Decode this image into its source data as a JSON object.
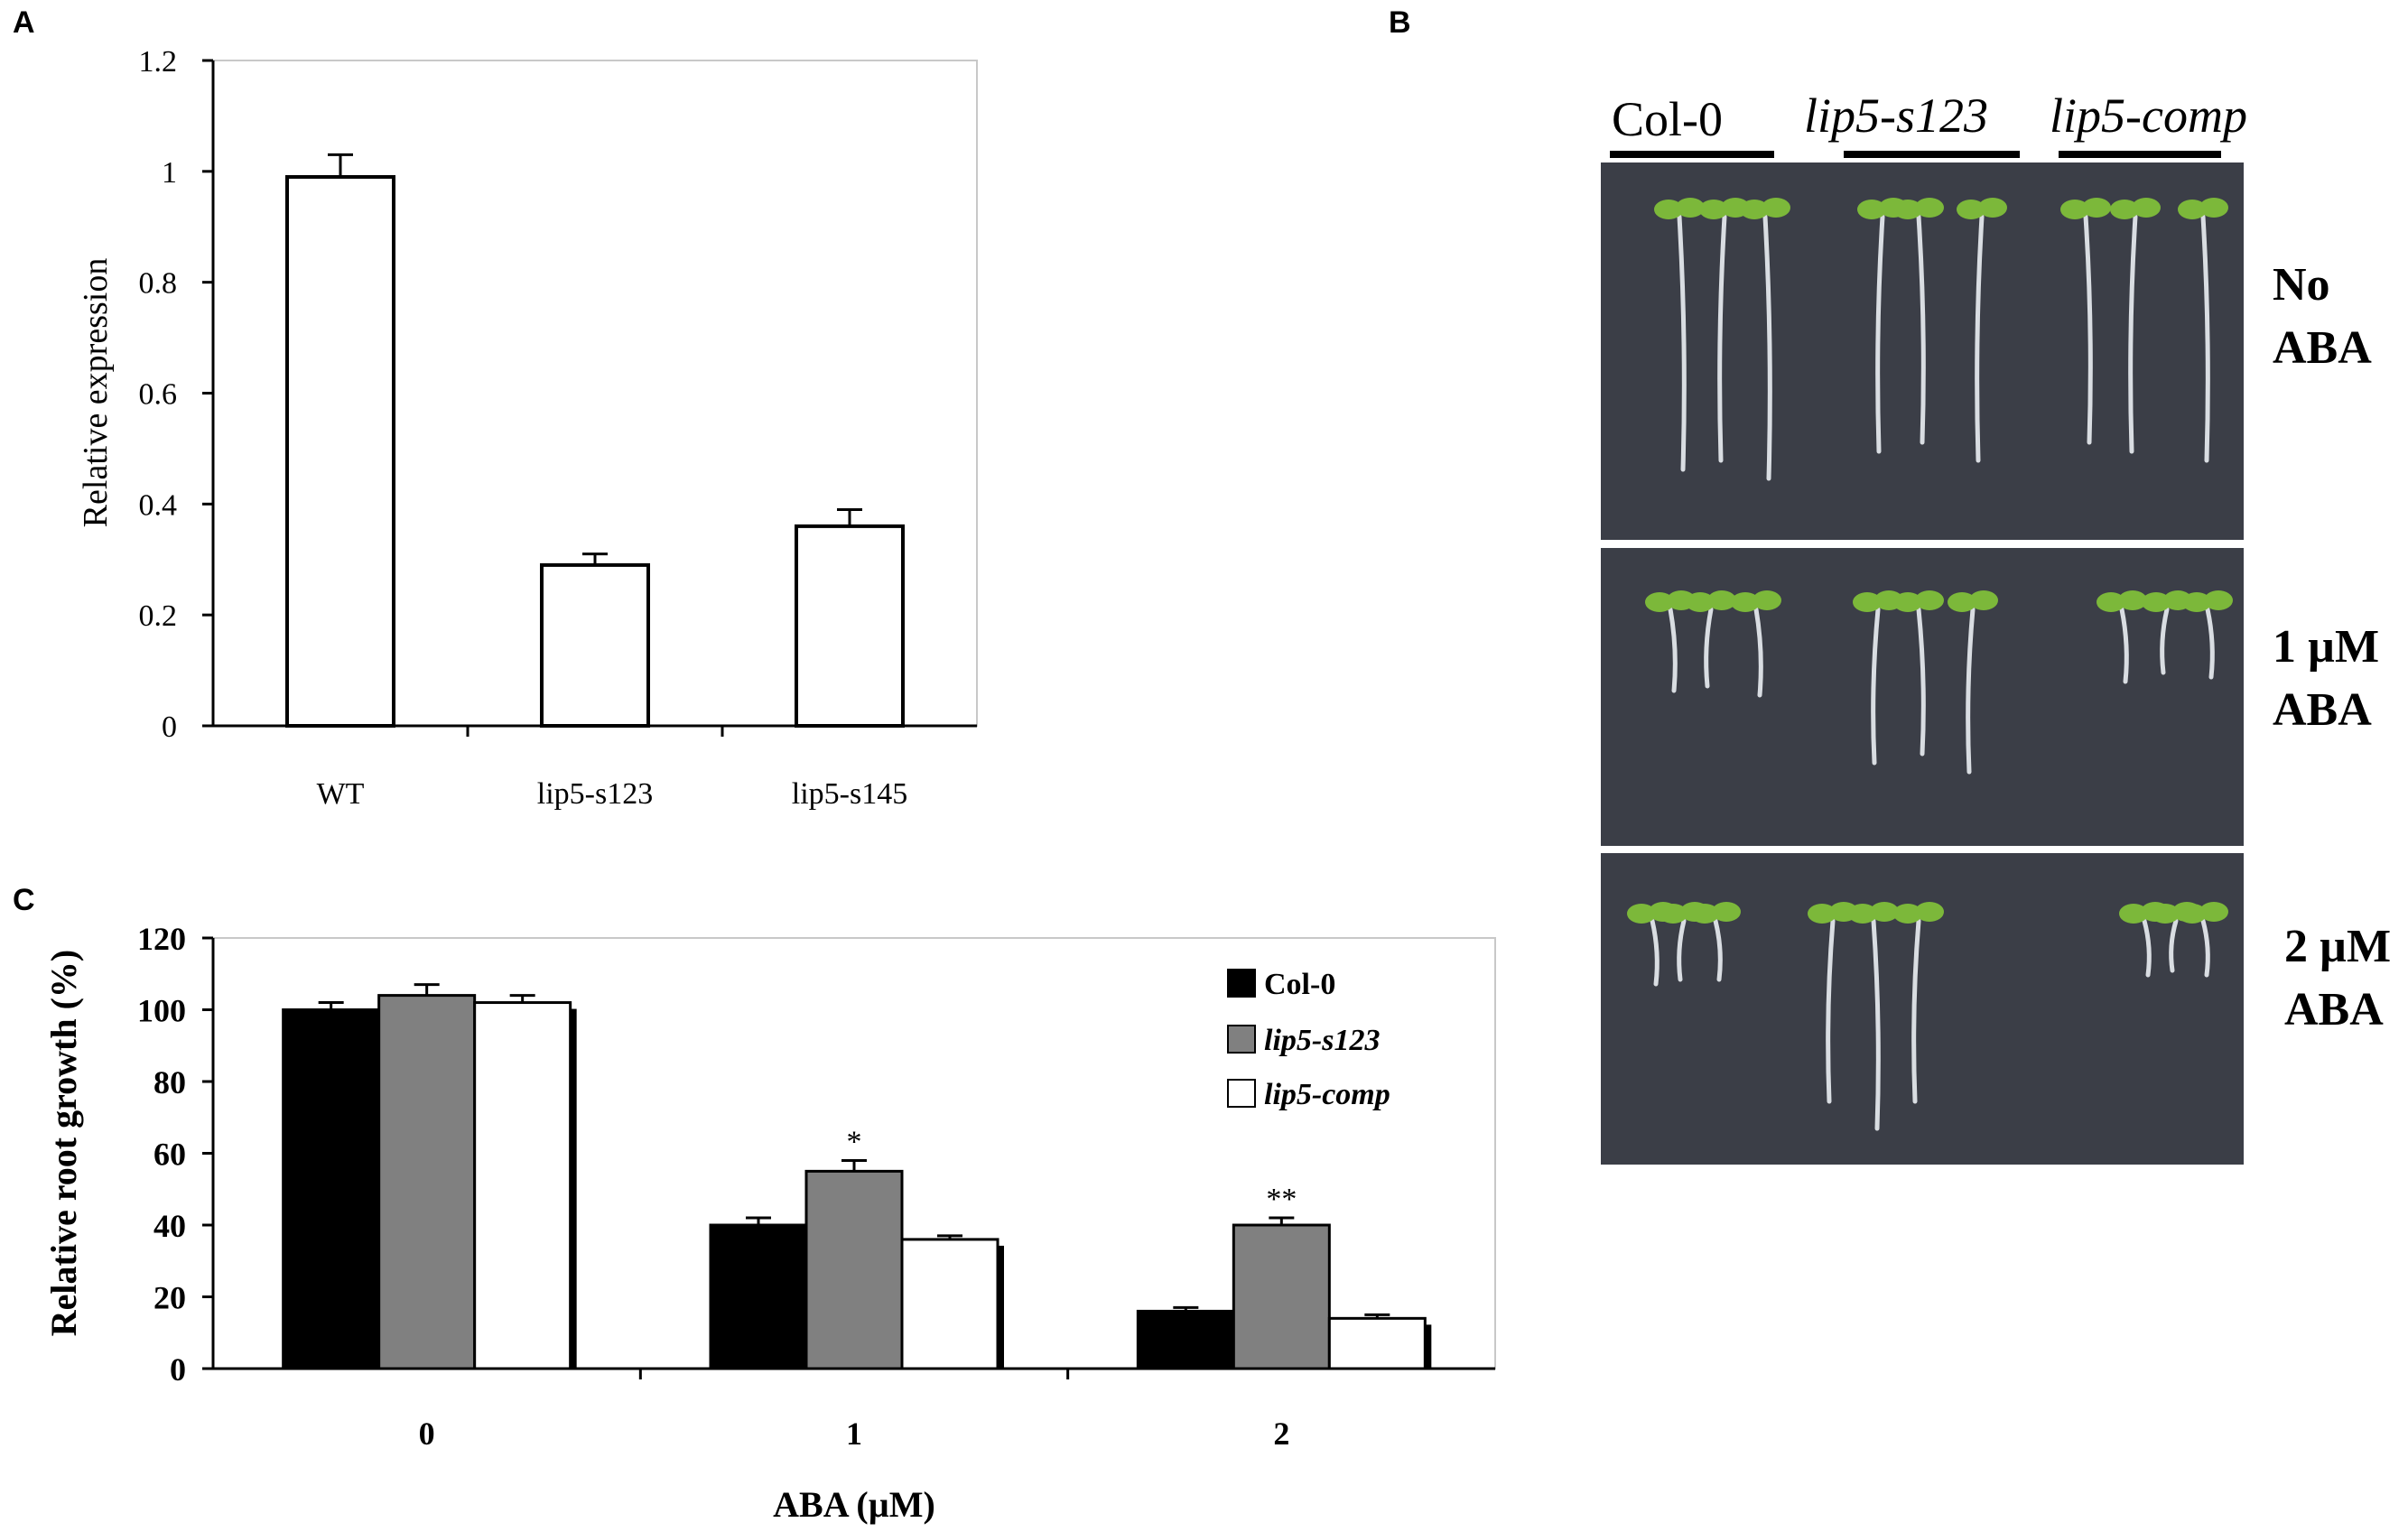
{
  "panel_labels": {
    "a": "A",
    "b": "B",
    "c": "C"
  },
  "chart_data": [
    {
      "panel": "A",
      "type": "bar",
      "categories": [
        "WT",
        "lip5-s123",
        "lip5-s145"
      ],
      "values": [
        0.99,
        0.29,
        0.36
      ],
      "errors": [
        0.04,
        0.02,
        0.03
      ],
      "title": "",
      "xlabel": "",
      "ylabel": "Relative expression",
      "ylim": [
        0,
        1.2
      ],
      "yticks": [
        "0",
        "0.2",
        "0.4",
        "0.6",
        "0.8",
        "1",
        "1.2"
      ],
      "bar_color": "#ffffff",
      "frame": "box, no grid"
    },
    {
      "panel": "C",
      "type": "bar",
      "categories": [
        "0",
        "1",
        "2"
      ],
      "series": [
        {
          "name": "Col-0",
          "values": [
            100,
            40,
            16
          ],
          "errors": [
            2,
            2,
            1
          ],
          "color": "#000000"
        },
        {
          "name": "lip5-s123",
          "values": [
            104,
            55,
            40
          ],
          "errors": [
            3,
            3,
            2
          ],
          "color": "#808080"
        },
        {
          "name": "lip5-comp",
          "values": [
            102,
            36,
            14
          ],
          "errors": [
            2,
            1,
            1
          ],
          "color": "#ffffff"
        }
      ],
      "annotations": [
        {
          "category": "1",
          "series": "lip5-s123",
          "text": "*"
        },
        {
          "category": "2",
          "series": "lip5-s123",
          "text": "**"
        }
      ],
      "title": "",
      "xlabel": "ABA (µM)",
      "ylabel": "Relative root growth (%)",
      "ylim": [
        0,
        120
      ],
      "yticks": [
        "0",
        "20",
        "40",
        "60",
        "80",
        "100",
        "120"
      ],
      "legend_position": "top-right"
    }
  ],
  "photo_panel": {
    "genotypes": [
      "Col-0",
      "lip5-s123",
      "lip5-comp"
    ],
    "conditions": [
      {
        "line1": "No",
        "line2": "ABA"
      },
      {
        "line1": "1 µM",
        "line2": "ABA"
      },
      {
        "line1": "2 µM",
        "line2": "ABA"
      }
    ],
    "background_color": "#3b3e47",
    "leaf_color": "#7cb83a"
  }
}
